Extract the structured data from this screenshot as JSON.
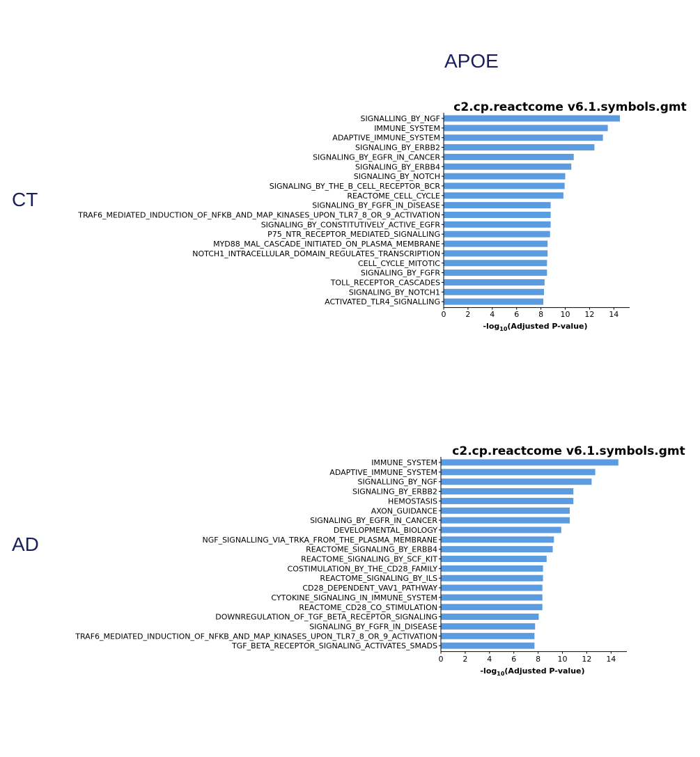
{
  "page": {
    "title": "APOE",
    "groups": [
      "CT",
      "AD"
    ]
  },
  "chart_data": [
    {
      "type": "bar",
      "orientation": "horizontal",
      "group": "CT",
      "title": "c2.cp.reactcome v6.1.symbols.gmt",
      "xlabel": "-log10(Adjusted P-value)",
      "xlabel_main": "-log",
      "xlabel_sub": "10",
      "xlabel_rest": "(Adjusted P-value)",
      "xlim": [
        0,
        15.3
      ],
      "xticks": [
        "0",
        "2",
        "4",
        "6",
        "8",
        "10",
        "12",
        "14"
      ],
      "bar_color": "#5b9bdf",
      "categories": [
        "SIGNALLING_BY_NGF",
        "IMMUNE_SYSTEM",
        "ADAPTIVE_IMMUNE_SYSTEM",
        "SIGNALING_BY_ERBB2",
        "SIGNALING_BY_EGFR_IN_CANCER",
        "SIGNALING_BY_ERBB4",
        "SIGNALING_BY_NOTCH",
        "SIGNALING_BY_THE_B_CELL_RECEPTOR_BCR",
        "REACTOME_CELL_CYCLE",
        "SIGNALING_BY_FGFR_IN_DISEASE",
        "TRAF6_MEDIATED_INDUCTION_OF_NFKB_AND_MAP_KINASES_UPON_TLR7_8_OR_9_ACTIVATION",
        "SIGNALING_BY_CONSTITUTIVELY_ACTIVE_EGFR",
        "P75_NTR_RECEPTOR_MEDIATED_SIGNALLING",
        "MYD88_MAL_CASCADE_INITIATED_ON_PLASMA_MEMBRANE",
        "NOTCH1_INTRACELLULAR_DOMAIN_REGULATES_TRANSCRIPTION",
        "CELL_CYCLE_MITOTIC",
        "SIGNALING_BY_FGFR",
        "TOLL_RECEPTOR_CASCADES",
        "SIGNALING_BY_NOTCH1",
        "ACTIVATED_TLR4_SIGNALLING"
      ],
      "values": [
        14.5,
        13.5,
        13.1,
        12.4,
        10.7,
        10.5,
        10.0,
        9.95,
        9.85,
        8.8,
        8.8,
        8.8,
        8.75,
        8.55,
        8.55,
        8.5,
        8.5,
        8.3,
        8.25,
        8.2
      ]
    },
    {
      "type": "bar",
      "orientation": "horizontal",
      "group": "AD",
      "title": "c2.cp.reactcome v6.1.symbols.gmt",
      "xlabel": "-log10(Adjusted P-value)",
      "xlabel_main": "-log",
      "xlabel_sub": "10",
      "xlabel_rest": "(Adjusted P-value)",
      "xlim": [
        0,
        15.3
      ],
      "xticks": [
        "0",
        "2",
        "4",
        "6",
        "8",
        "10",
        "12",
        "14"
      ],
      "bar_color": "#5b9bdf",
      "categories": [
        "IMMUNE_SYSTEM",
        "ADAPTIVE_IMMUNE_SYSTEM",
        "SIGNALLING_BY_NGF",
        "SIGNALING_BY_ERBB2",
        "HEMOSTASIS",
        "AXON_GUIDANCE",
        "SIGNALING_BY_EGFR_IN_CANCER",
        "DEVELOPMENTAL_BIOLOGY",
        "NGF_SIGNALLING_VIA_TRKA_FROM_THE_PLASMA_MEMBRANE",
        "REACTOME_SIGNALING_BY_ERBB4",
        "REACTOME_SIGNALING_BY_SCF_KIT",
        "COSTIMULATION_BY_THE_CD28_FAMILY",
        "REACTOME_SIGNALING_BY_ILS",
        "CD28_DEPENDENT_VAV1_PATHWAY",
        "CYTOKINE_SIGNALING_IN_IMMUNE_SYSTEM",
        "REACTOME_CD28_CO_STIMULATION",
        "DOWNREGULATION_OF_TGF_BETA_RECEPTOR_SIGNALING",
        "SIGNALING_BY_FGFR_IN_DISEASE",
        "TRAF6_MEDIATED_INDUCTION_OF_NFKB_AND_MAP_KINASES_UPON_TLR7_8_OR_9_ACTIVATION",
        "TGF_BETA_RECEPTOR_SIGNALING_ACTIVATES_SMADS"
      ],
      "values": [
        14.6,
        12.7,
        12.4,
        10.9,
        10.9,
        10.6,
        10.6,
        9.9,
        9.3,
        9.2,
        8.7,
        8.4,
        8.4,
        8.35,
        8.35,
        8.35,
        8.05,
        7.75,
        7.7,
        7.7
      ]
    }
  ]
}
